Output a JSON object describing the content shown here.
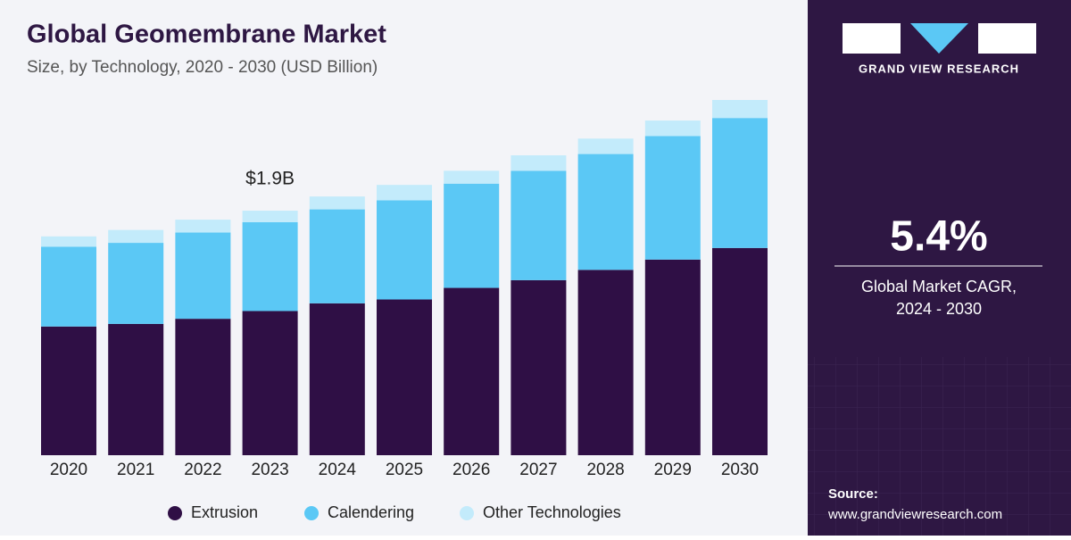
{
  "chart_data": {
    "type": "stacked_bar",
    "title": "Global Geomembrane Market",
    "subtitle": "Size, by Technology, 2020 - 2030 (USD Billion)",
    "categories": [
      "2020",
      "2021",
      "2022",
      "2023",
      "2024",
      "2025",
      "2026",
      "2027",
      "2028",
      "2029",
      "2030"
    ],
    "series": [
      {
        "name": "Extrusion",
        "color": "#2f0f45",
        "values": [
          1.0,
          1.02,
          1.06,
          1.12,
          1.18,
          1.21,
          1.3,
          1.36,
          1.44,
          1.52,
          1.61
        ]
      },
      {
        "name": "Calendering",
        "color": "#5bc8f5",
        "values": [
          0.62,
          0.63,
          0.67,
          0.69,
          0.73,
          0.77,
          0.81,
          0.85,
          0.9,
          0.96,
          1.01
        ]
      },
      {
        "name": "Other Technologies",
        "color": "#c3ebfb",
        "values": [
          0.08,
          0.1,
          0.1,
          0.09,
          0.1,
          0.12,
          0.1,
          0.12,
          0.12,
          0.12,
          0.14
        ]
      }
    ],
    "annotation": {
      "category": "2023",
      "value": 1.9,
      "text": "$1.9B"
    },
    "brand": "GRAND VIEW RESEARCH",
    "cagr": "5.4%",
    "cagr_label": [
      "Global Market CAGR,",
      "2024 - 2030"
    ],
    "source_label": "Source:",
    "source_url": "www.grandviewresearch.com"
  }
}
